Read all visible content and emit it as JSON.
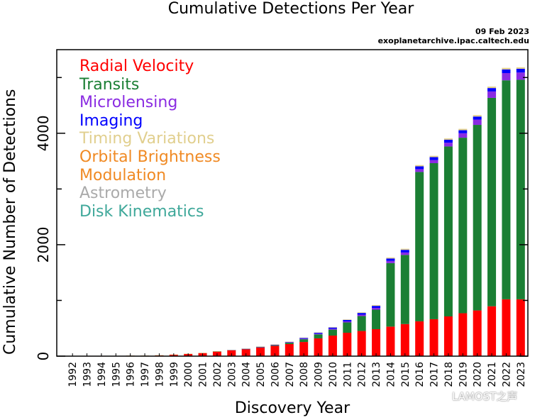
{
  "chart_data": {
    "type": "bar",
    "stacked": true,
    "title": "Cumulative Detections Per Year",
    "date": "09 Feb 2023",
    "source": "exoplanetarchive.ipac.caltech.edu",
    "xlabel": "Discovery Year",
    "ylabel": "Cumulative Number of Detections",
    "ylim": [
      0,
      5500
    ],
    "yticks": [
      0,
      2000,
      4000
    ],
    "ytick_labels": [
      "0",
      "2000",
      "4000"
    ],
    "minor_yticks": [
      1000,
      3000,
      5000
    ],
    "grid": false,
    "legend_position": "top-left",
    "categories": [
      "1992",
      "1993",
      "1994",
      "1995",
      "1996",
      "1997",
      "1998",
      "1999",
      "2000",
      "2001",
      "2002",
      "2003",
      "2004",
      "2005",
      "2006",
      "2007",
      "2008",
      "2009",
      "2010",
      "2011",
      "2012",
      "2013",
      "2014",
      "2015",
      "2016",
      "2017",
      "2018",
      "2019",
      "2020",
      "2021",
      "2022",
      "2023"
    ],
    "series": [
      {
        "name": "Radial Velocity",
        "color": "#ff0000",
        "values": [
          0,
          1,
          1,
          3,
          9,
          10,
          16,
          28,
          43,
          58,
          86,
          108,
          126,
          155,
          184,
          217,
          254,
          319,
          369,
          420,
          451,
          484,
          530,
          576,
          625,
          663,
          713,
          770,
          820,
          895,
          1020,
          1020
        ]
      },
      {
        "name": "Transits",
        "color": "#1b7f34",
        "values": [
          0,
          0,
          0,
          0,
          0,
          0,
          0,
          0,
          0,
          0,
          1,
          2,
          5,
          9,
          13,
          24,
          50,
          72,
          107,
          185,
          268,
          350,
          1140,
          1240,
          2680,
          2800,
          3050,
          3150,
          3330,
          3740,
          3930,
          3940
        ]
      },
      {
        "name": "Microlensing",
        "color": "#8a2be2",
        "values": [
          0,
          0,
          0,
          0,
          0,
          0,
          0,
          0,
          0,
          0,
          0,
          1,
          2,
          4,
          6,
          8,
          10,
          12,
          16,
          19,
          26,
          32,
          39,
          44,
          51,
          56,
          67,
          80,
          95,
          115,
          130,
          130
        ]
      },
      {
        "name": "Imaging",
        "color": "#0000ff",
        "values": [
          0,
          0,
          0,
          0,
          0,
          0,
          0,
          0,
          0,
          0,
          0,
          0,
          1,
          3,
          6,
          8,
          15,
          18,
          22,
          25,
          30,
          36,
          43,
          47,
          50,
          52,
          53,
          54,
          55,
          61,
          65,
          66
        ]
      },
      {
        "name": "Timing Variations",
        "color": "#e1cf8e",
        "values": [
          2,
          2,
          2,
          2,
          2,
          2,
          2,
          2,
          2,
          2,
          3,
          3,
          3,
          3,
          3,
          3,
          4,
          5,
          7,
          9,
          11,
          15,
          18,
          20,
          23,
          24,
          24,
          25,
          26,
          27,
          28,
          28
        ]
      },
      {
        "name": "Orbital Brightness",
        "color": "#f08a24",
        "values": [
          0,
          0,
          0,
          0,
          0,
          0,
          0,
          0,
          0,
          0,
          0,
          0,
          0,
          0,
          0,
          0,
          0,
          0,
          0,
          0,
          0,
          0,
          0,
          0,
          0,
          0,
          0,
          0,
          0,
          0,
          0,
          0
        ]
      },
      {
        "name": "Modulation",
        "color": "#f08a24",
        "values": [
          0,
          0,
          0,
          0,
          0,
          0,
          0,
          0,
          0,
          0,
          0,
          0,
          0,
          0,
          0,
          0,
          0,
          0,
          0,
          0,
          0,
          0,
          0,
          0,
          0,
          0,
          0,
          0,
          0,
          0,
          0,
          0
        ]
      },
      {
        "name": "Astrometry",
        "color": "#aaaaaa",
        "values": [
          0,
          0,
          0,
          0,
          0,
          0,
          0,
          0,
          0,
          0,
          0,
          0,
          0,
          0,
          0,
          0,
          0,
          0,
          0,
          0,
          0,
          0,
          0,
          0,
          0,
          0,
          0,
          0,
          0,
          0,
          0,
          0
        ]
      },
      {
        "name": "Disk Kinematics",
        "color": "#3fa89a",
        "values": [
          0,
          0,
          0,
          0,
          0,
          0,
          0,
          0,
          0,
          0,
          0,
          0,
          0,
          0,
          0,
          0,
          0,
          0,
          0,
          0,
          0,
          0,
          0,
          0,
          0,
          0,
          0,
          0,
          0,
          0,
          0,
          0
        ]
      }
    ]
  },
  "watermark": {
    "text": "LAMOST之声",
    "icon": "wechat-icon"
  }
}
